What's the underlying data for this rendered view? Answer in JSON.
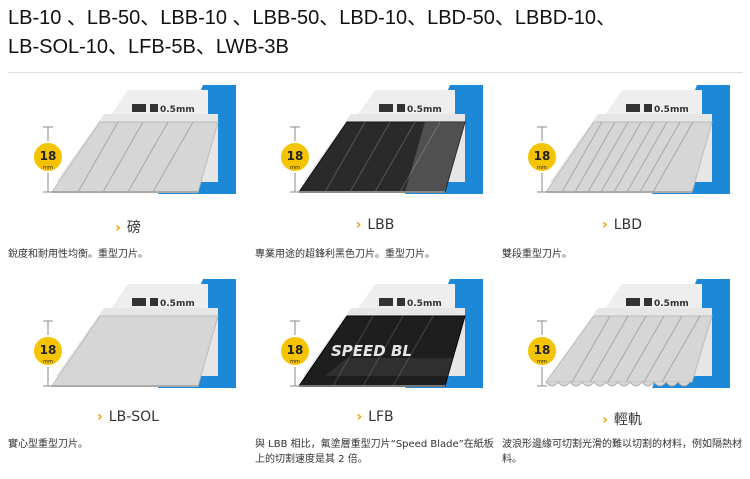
{
  "page": {
    "title_line1": "LB-10 、LB-50、LBB-10 、LBB-50、LBD-10、LBD-50、LBBD-10、",
    "title_line2": "LB-SOL-10、LFB-5B、LWB-3B"
  },
  "products": [
    {
      "id": "lb",
      "name": "磅",
      "desc": "銳度和耐用性均衡。重型刀片。",
      "thickness": "0.5mm",
      "width": "18",
      "width_unit": "mm",
      "style": "silver"
    },
    {
      "id": "lbb",
      "name": "LBB",
      "desc": "專業用途的超鋒利黑色刀片。重型刀片。",
      "thickness": "0.5mm",
      "width": "18",
      "width_unit": "mm",
      "style": "black"
    },
    {
      "id": "lbd",
      "name": "LBD",
      "desc": "雙段重型刀片。",
      "thickness": "0.5mm",
      "width": "18",
      "width_unit": "mm",
      "style": "silver-double"
    },
    {
      "id": "lbsol",
      "name": "LB-SOL",
      "desc": "實心型重型刀片。",
      "thickness": "0.5mm",
      "width": "18",
      "width_unit": "mm",
      "style": "solid"
    },
    {
      "id": "lfb",
      "name": "LFB",
      "desc": "與 LBB 相比，氟塗層重型刀片“Speed Blade”在紙板上的切割速度是其 2 倍。",
      "thickness": "0.5mm",
      "width": "18",
      "width_unit": "mm",
      "style": "speed",
      "blade_text": "SPEED BL"
    },
    {
      "id": "lwb",
      "name": "輕軌",
      "desc": "波浪形邊緣可切割光滑的難以切割的材料，例如隔熱材料。",
      "thickness": "0.5mm",
      "width": "18",
      "width_unit": "mm",
      "style": "wave"
    }
  ],
  "colors": {
    "accent_blue": "#1e88d8",
    "badge_yellow": "#f5c400",
    "chevron": "#f0a000",
    "blade_silver": "#d8d8d8",
    "blade_black": "#2a2a2a"
  },
  "icons": {
    "thickness": "blade-thickness-icon",
    "chevron": "chevron-right-icon"
  }
}
